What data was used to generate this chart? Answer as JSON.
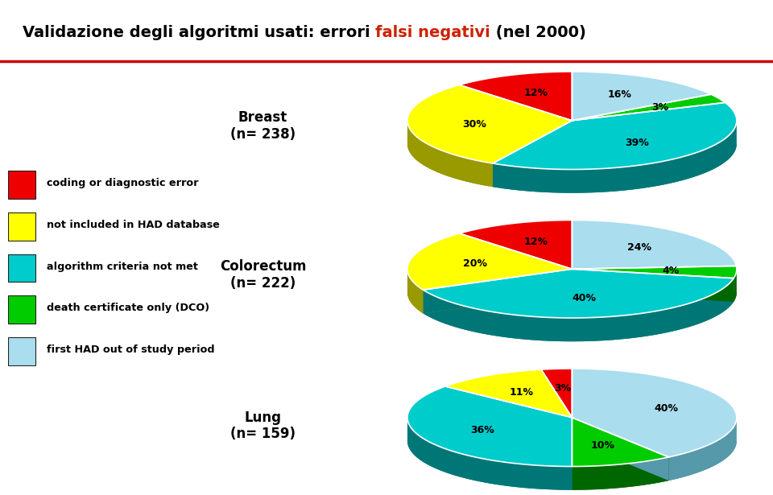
{
  "bg_color": "#ffffff",
  "title_part1": "Validazione degli algoritmi usati: errori ",
  "title_part2": "falsi negativi",
  "title_part3": " (nel 2000)",
  "title_fontsize": 14,
  "red_line_color": "#cc0000",
  "legend_items": [
    {
      "label": "coding or diagnostic error",
      "color": "#ee0000",
      "dark": "#880000"
    },
    {
      "label": "not included in HAD database",
      "color": "#ffff00",
      "dark": "#999900"
    },
    {
      "label": "algorithm criteria not met",
      "color": "#00cccc",
      "dark": "#007777"
    },
    {
      "label": "death certificate only (DCO)",
      "color": "#00cc00",
      "dark": "#006600"
    },
    {
      "label": "first HAD out of study period",
      "color": "#aaddee",
      "dark": "#5599aa"
    }
  ],
  "pies": [
    {
      "label": "Breast\n(n= 238)",
      "slices": [
        {
          "pct": 12,
          "label": "12%",
          "ci": 0
        },
        {
          "pct": 30,
          "label": "30%",
          "ci": 1
        },
        {
          "pct": 39,
          "label": "39%",
          "ci": 2
        },
        {
          "pct": 3,
          "label": "3%",
          "ci": 3
        },
        {
          "pct": 16,
          "label": "16%",
          "ci": 4
        }
      ],
      "startangle": 90
    },
    {
      "label": "Colorectum\n(n= 222)",
      "slices": [
        {
          "pct": 12,
          "label": "12%",
          "ci": 0
        },
        {
          "pct": 20,
          "label": "20%",
          "ci": 1
        },
        {
          "pct": 40,
          "label": "40%",
          "ci": 2
        },
        {
          "pct": 4,
          "label": "4%",
          "ci": 3
        },
        {
          "pct": 24,
          "label": "24%",
          "ci": 4
        }
      ],
      "startangle": 90
    },
    {
      "label": "Lung\n(n= 159)",
      "slices": [
        {
          "pct": 3,
          "label": "3%",
          "ci": 0
        },
        {
          "pct": 11,
          "label": "11%",
          "ci": 1
        },
        {
          "pct": 36,
          "label": "36%",
          "ci": 2
        },
        {
          "pct": 10,
          "label": "10%",
          "ci": 3
        },
        {
          "pct": 40,
          "label": "40%",
          "ci": 4
        },
        {
          "pct": 0,
          "label": "",
          "ci": 5
        }
      ],
      "startangle": 90
    }
  ],
  "extra_color": "#aaaaaa",
  "extra_dark": "#666666"
}
